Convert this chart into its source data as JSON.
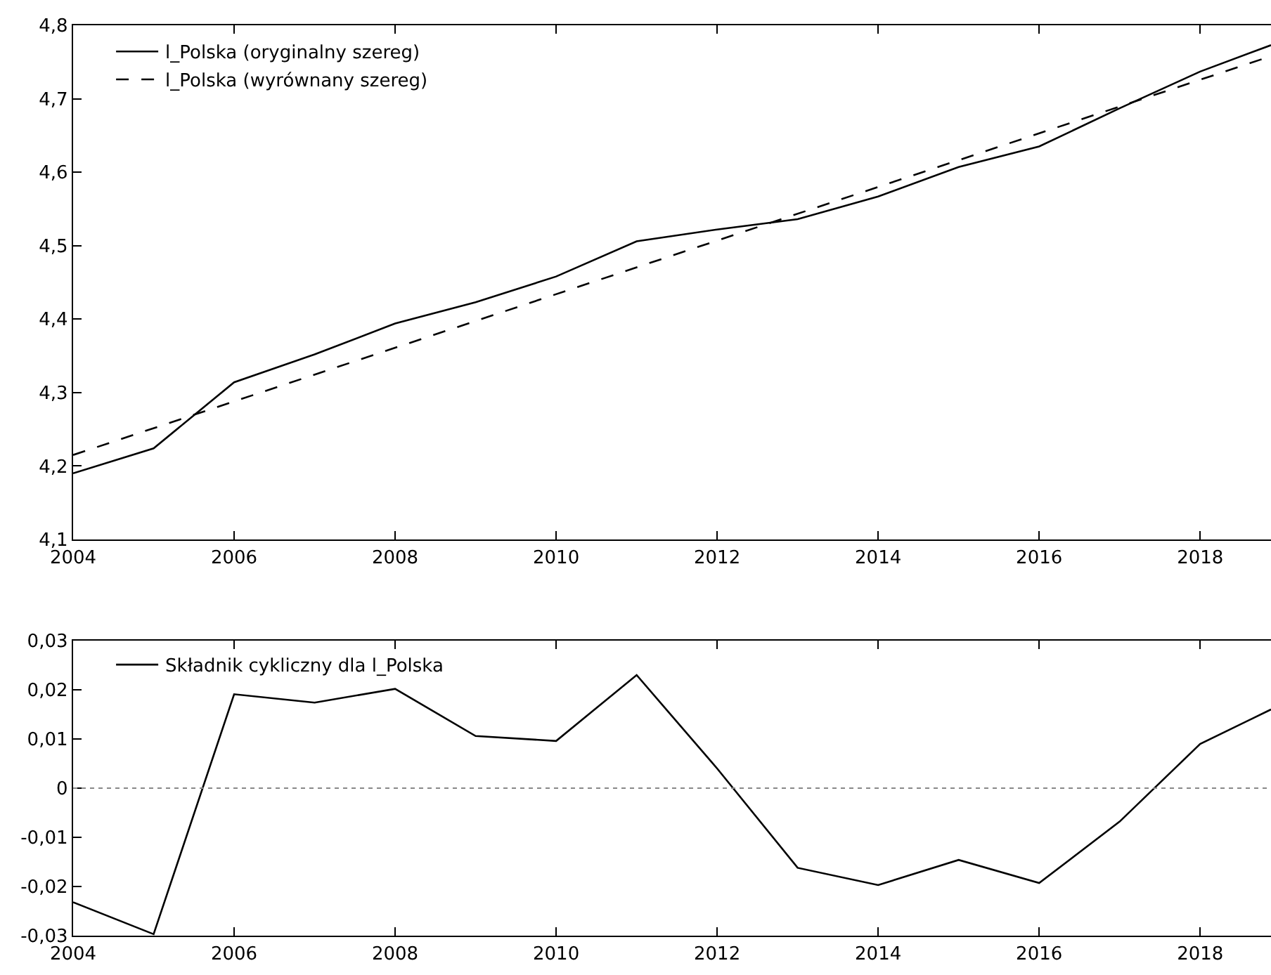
{
  "chart_data": [
    {
      "type": "line",
      "legend": "top left",
      "grid": false,
      "xlim": [
        2004,
        2018.88
      ],
      "xticks": [
        2004,
        2006,
        2008,
        2010,
        2012,
        2014,
        2016,
        2018
      ],
      "ylim": [
        4.1,
        4.8
      ],
      "yticks": [
        {
          "value": 4.1,
          "label": "4,1"
        },
        {
          "value": 4.2,
          "label": "4,2"
        },
        {
          "value": 4.3,
          "label": "4,3"
        },
        {
          "value": 4.4,
          "label": "4,4"
        },
        {
          "value": 4.5,
          "label": "4,5"
        },
        {
          "value": 4.6,
          "label": "4,6"
        },
        {
          "value": 4.7,
          "label": "4,7"
        },
        {
          "value": 4.8,
          "label": "4,8"
        }
      ],
      "series": [
        {
          "name": "l_Polska (oryginalny szereg)",
          "color": "#000000",
          "line_style": "solid",
          "x": [
            2004,
            2005,
            2006,
            2007,
            2008,
            2009,
            2010,
            2011,
            2012,
            2013,
            2014,
            2015,
            2016,
            2017,
            2018,
            2018.88
          ],
          "values": [
            4.19,
            4.224,
            4.314,
            4.352,
            4.394,
            4.423,
            4.458,
            4.506,
            4.522,
            4.536,
            4.567,
            4.607,
            4.635,
            4.687,
            4.737,
            4.773
          ]
        },
        {
          "name": "l_Polska (wyrównany szereg)",
          "color": "#000000",
          "line_style": "dashed",
          "x": [
            2004,
            2018.88
          ],
          "values": [
            4.215,
            4.758
          ]
        }
      ]
    },
    {
      "type": "line",
      "legend": "top left",
      "grid": false,
      "xlim": [
        2004,
        2018.88
      ],
      "xticks": [
        2004,
        2006,
        2008,
        2010,
        2012,
        2014,
        2016,
        2018
      ],
      "ylim": [
        -0.03,
        0.03
      ],
      "yticks": [
        {
          "value": -0.03,
          "label": "-0,03"
        },
        {
          "value": -0.02,
          "label": "-0,02"
        },
        {
          "value": -0.01,
          "label": "-0,01"
        },
        0,
        {
          "value": 0.01,
          "label": "0,01"
        },
        {
          "value": 0.02,
          "label": "0,02"
        },
        {
          "value": 0.03,
          "label": "0,03"
        }
      ],
      "ref_lines": [
        {
          "axis": "y",
          "value": 0,
          "color": "#888888",
          "line_style": "dotted"
        }
      ],
      "series": [
        {
          "name": "Składnik cykliczny dla l_Polska",
          "color": "#000000",
          "line_style": "solid",
          "x": [
            2004,
            2005,
            2006,
            2007,
            2008,
            2009,
            2010,
            2011,
            2012,
            2013,
            2014,
            2015,
            2016,
            2017,
            2018,
            2018.88
          ],
          "values": [
            -0.0232,
            -0.0297,
            0.0191,
            0.0174,
            0.0202,
            0.0106,
            0.0096,
            0.023,
            0.004,
            -0.0162,
            -0.0197,
            -0.0146,
            -0.0193,
            -0.0068,
            0.009,
            0.016
          ]
        }
      ]
    }
  ]
}
